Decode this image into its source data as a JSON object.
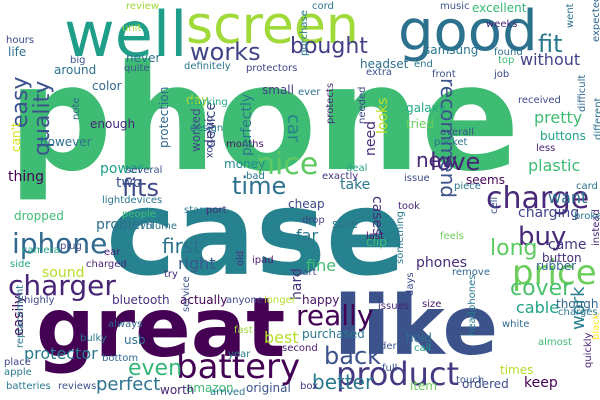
{
  "word_cloud": {
    "background": "#ffffff",
    "words": [
      {
        "text": "phone",
        "color": "#3fbc73"
      },
      {
        "text": "case",
        "color": "#26828e"
      },
      {
        "text": "great",
        "color": "#440154"
      },
      {
        "text": "like",
        "color": "#3b528b"
      },
      {
        "text": "well",
        "color": "#1f9e89"
      },
      {
        "text": "screen",
        "color": "#a0da39"
      },
      {
        "text": "good",
        "color": "#2c728e"
      },
      {
        "text": "battery",
        "color": "#440154"
      },
      {
        "text": "product",
        "color": "#443983"
      },
      {
        "text": "charger",
        "color": "#482475"
      },
      {
        "text": "iphone",
        "color": "#31688e"
      },
      {
        "text": "price",
        "color": "#6ccd5a"
      },
      {
        "text": "really",
        "color": "#440154"
      },
      {
        "text": "charge",
        "color": "#482878"
      },
      {
        "text": "fits",
        "color": "#3e4a89"
      },
      {
        "text": "time",
        "color": "#2c728e"
      },
      {
        "text": "works",
        "color": "#414487"
      },
      {
        "text": "bought",
        "color": "#433e85"
      },
      {
        "text": "love",
        "color": "#482475"
      },
      {
        "text": "back",
        "color": "#3b528b"
      },
      {
        "text": "nice",
        "color": "#5ec962"
      },
      {
        "text": "fit",
        "color": "#2a788e"
      },
      {
        "text": "buy",
        "color": "#482878"
      },
      {
        "text": "cover",
        "color": "#4ac16d"
      },
      {
        "text": "better",
        "color": "#2a788e"
      },
      {
        "text": "even",
        "color": "#35b779"
      },
      {
        "text": "recommend",
        "color": "#3b528b"
      },
      {
        "text": "easy",
        "color": "#3b528b"
      },
      {
        "text": "quality",
        "color": "#3b528b"
      },
      {
        "text": "first",
        "color": "#2c728e"
      },
      {
        "text": "perfect",
        "color": "#2c728e"
      },
      {
        "text": "long",
        "color": "#5ec962"
      },
      {
        "text": "new",
        "color": "#482878"
      },
      {
        "text": "work",
        "color": "#277f8e"
      },
      {
        "text": "pretty",
        "color": "#3fbc73"
      },
      {
        "text": "plastic",
        "color": "#3fbc73"
      },
      {
        "text": "without",
        "color": "#414487"
      },
      {
        "text": "charging",
        "color": "#404688"
      },
      {
        "text": "protector",
        "color": "#2a788e"
      },
      {
        "text": "cable",
        "color": "#20a386"
      },
      {
        "text": "keep",
        "color": "#440154"
      },
      {
        "text": "fine",
        "color": "#3fbc73"
      },
      {
        "text": "cases",
        "color": "#472d7b"
      },
      {
        "text": "best",
        "color": "#b5de2b"
      },
      {
        "text": "want",
        "color": "#2d708e"
      },
      {
        "text": "came",
        "color": "#453781"
      },
      {
        "text": "sound",
        "color": "#b5de2b"
      },
      {
        "text": "right",
        "color": "#365c8d"
      },
      {
        "text": "power",
        "color": "#1f9e89"
      },
      {
        "text": "two",
        "color": "#3b528b"
      },
      {
        "text": "color",
        "color": "#31688e"
      },
      {
        "text": "enough",
        "color": "#482878"
      },
      {
        "text": "phones",
        "color": "#472d7b"
      },
      {
        "text": "problem",
        "color": "#2d708e"
      },
      {
        "text": "easily",
        "color": "#440154"
      },
      {
        "text": "thing",
        "color": "#440154"
      },
      {
        "text": "take",
        "color": "#2a788e"
      },
      {
        "text": "far",
        "color": "#2a788e"
      },
      {
        "text": "hard",
        "color": "#46337e"
      },
      {
        "text": "looks",
        "color": "#bddf26"
      },
      {
        "text": "need",
        "color": "#472d7b"
      },
      {
        "text": "months",
        "color": "#471365"
      },
      {
        "text": "around",
        "color": "#2d708e"
      },
      {
        "text": "however",
        "color": "#2d708e"
      },
      {
        "text": "protection",
        "color": "#31688e"
      },
      {
        "text": "perfectly",
        "color": "#2a788e"
      },
      {
        "text": "device",
        "color": "#3e4a89"
      },
      {
        "text": "can't",
        "color": "#d8e219"
      },
      {
        "text": "dropped",
        "color": "#3fbc73"
      },
      {
        "text": "usb",
        "color": "#2d708e"
      },
      {
        "text": "bluetooth",
        "color": "#46337e"
      },
      {
        "text": "hold",
        "color": "#2d708e"
      },
      {
        "text": "purchased",
        "color": "#2a788e"
      },
      {
        "text": "happy",
        "color": "#471365"
      },
      {
        "text": "ordered",
        "color": "#3e4a89"
      },
      {
        "text": "item",
        "color": "#6ccd5a"
      },
      {
        "text": "headset",
        "color": "#2d708e"
      },
      {
        "text": "samsung",
        "color": "#2a788e"
      },
      {
        "text": "galaxy",
        "color": "#22a884"
      },
      {
        "text": "tried",
        "color": "#6ccd5a"
      },
      {
        "text": "car",
        "color": "#26828e"
      },
      {
        "text": "rubber",
        "color": "#31688e"
      },
      {
        "text": "button",
        "color": "#472d7b"
      },
      {
        "text": "day",
        "color": "#b5de2b"
      },
      {
        "text": "buttons",
        "color": "#20a386"
      },
      {
        "text": "life",
        "color": "#2c728e"
      },
      {
        "text": "never",
        "color": "#2c728e"
      },
      {
        "text": "small",
        "color": "#424086"
      },
      {
        "text": "money",
        "color": "#238a8d"
      },
      {
        "text": "worked",
        "color": "#404688"
      },
      {
        "text": "cheap",
        "color": "#3e4a89"
      },
      {
        "text": "amazon",
        "color": "#3fbc73"
      },
      {
        "text": "worth",
        "color": "#482475"
      },
      {
        "text": "original",
        "color": "#3b528b"
      },
      {
        "text": "actually",
        "color": "#440154"
      },
      {
        "text": "received",
        "color": "#3e4a89"
      },
      {
        "text": "times",
        "color": "#b5de2b"
      },
      {
        "text": "though",
        "color": "#31688e"
      },
      {
        "text": "seems",
        "color": "#440154"
      },
      {
        "text": "clip",
        "color": "#3fbc73"
      },
      {
        "text": "last",
        "color": "#48186a"
      },
      {
        "text": "sure",
        "color": "#2c728e"
      },
      {
        "text": "exactly",
        "color": "#46337e"
      },
      {
        "text": "anyone",
        "color": "#3e4a89"
      },
      {
        "text": "instead",
        "color": "#482475"
      },
      {
        "text": "overall",
        "color": "#3b528b"
      },
      {
        "text": "less",
        "color": "#482475"
      },
      {
        "text": "excellent",
        "color": "#35b779"
      },
      {
        "text": "music",
        "color": "#3b528b"
      },
      {
        "text": "cord",
        "color": "#2a788e"
      },
      {
        "text": "review",
        "color": "#9fda3a"
      },
      {
        "text": "unit",
        "color": "#a0da39"
      },
      {
        "text": "hours",
        "color": "#3e4a89"
      },
      {
        "text": "big",
        "color": "#3b528b"
      },
      {
        "text": "quite",
        "color": "#3b528b"
      },
      {
        "text": "definitely",
        "color": "#2a788e"
      },
      {
        "text": "protectors",
        "color": "#414487"
      },
      {
        "text": "extra",
        "color": "#3b528b"
      },
      {
        "text": "job",
        "color": "#3e4a89"
      },
      {
        "text": "top",
        "color": "#3fbc73"
      },
      {
        "text": "found",
        "color": "#2c728e"
      },
      {
        "text": "end",
        "color": "#2a788e"
      },
      {
        "text": "front",
        "color": "#3b528b"
      },
      {
        "text": "ear",
        "color": "#482475"
      },
      {
        "text": "plug",
        "color": "#3e4a89"
      },
      {
        "text": "camera",
        "color": "#20a386"
      },
      {
        "text": "side",
        "color": "#22a884"
      },
      {
        "text": "charged",
        "color": "#482878"
      },
      {
        "text": "volume",
        "color": "#2c728e"
      },
      {
        "text": "stars",
        "color": "#2a788e"
      },
      {
        "text": "port",
        "color": "#482878"
      },
      {
        "text": "drop",
        "color": "#433e85"
      },
      {
        "text": "part",
        "color": "#3b528b"
      },
      {
        "text": "ipad",
        "color": "#48186a"
      },
      {
        "text": "old",
        "color": "#46337e"
      },
      {
        "text": "fast",
        "color": "#a0da39"
      },
      {
        "text": "second",
        "color": "#48186a"
      },
      {
        "text": "always",
        "color": "#31688e"
      },
      {
        "text": "bottom",
        "color": "#31688e"
      },
      {
        "text": "apple",
        "color": "#2a788e"
      },
      {
        "text": "batteries",
        "color": "#2a788e"
      },
      {
        "text": "reviews",
        "color": "#3b528b"
      },
      {
        "text": "place",
        "color": "#414487"
      },
      {
        "text": "highly",
        "color": "#3e4a89"
      },
      {
        "text": "bulky",
        "color": "#2a788e"
      },
      {
        "text": "longer",
        "color": "#b5de2b"
      },
      {
        "text": "box",
        "color": "#46337e"
      },
      {
        "text": "full",
        "color": "#3b528b"
      },
      {
        "text": "call",
        "color": "#20a386"
      },
      {
        "text": "touch",
        "color": "#3b528b"
      },
      {
        "text": "almost",
        "color": "#3fbc73"
      },
      {
        "text": "charges",
        "color": "#2a788e"
      },
      {
        "text": "quickly",
        "color": "#482475"
      },
      {
        "text": "black",
        "color": "#fde725"
      },
      {
        "text": "white",
        "color": "#31688e"
      },
      {
        "text": "headphones",
        "color": "#2a788e"
      },
      {
        "text": "days",
        "color": "#3e4a89"
      },
      {
        "text": "size",
        "color": "#48186a"
      },
      {
        "text": "issues",
        "color": "#482878"
      },
      {
        "text": "feels",
        "color": "#6ccd5a"
      },
      {
        "text": "remove",
        "color": "#31688e"
      },
      {
        "text": "cell",
        "color": "#3b528b"
      },
      {
        "text": "card",
        "color": "#2c728e"
      },
      {
        "text": "broke",
        "color": "#2a788e"
      },
      {
        "text": "piece",
        "color": "#2a788e"
      },
      {
        "text": "took",
        "color": "#482878"
      },
      {
        "text": "deal",
        "color": "#20a386"
      },
      {
        "text": "issue",
        "color": "#3e4a89"
      },
      {
        "text": "bad",
        "color": "#2c728e"
      },
      {
        "text": "design",
        "color": "#2a788e"
      },
      {
        "text": "otterbox",
        "color": "#414487"
      },
      {
        "text": "note",
        "color": "#31688e"
      },
      {
        "text": "several",
        "color": "#3b528b"
      },
      {
        "text": "people",
        "color": "#3fbc73"
      },
      {
        "text": "lightdevices",
        "color": "#2a788e"
      },
      {
        "text": "protects",
        "color": "#482878"
      },
      {
        "text": "needed",
        "color": "#3e4a89"
      },
      {
        "text": "pocket",
        "color": "#2c728e"
      },
      {
        "text": "difficult",
        "color": "#31688e"
      },
      {
        "text": "weeks",
        "color": "#482878"
      },
      {
        "text": "went",
        "color": "#2c728e"
      },
      {
        "text": "expected",
        "color": "#31688e"
      },
      {
        "text": "ever",
        "color": "#2c728e"
      },
      {
        "text": "different",
        "color": "#2c728e"
      },
      {
        "text": "working",
        "color": "#22a884"
      },
      {
        "text": "try",
        "color": "#482878"
      },
      {
        "text": "service",
        "color": "#3b528b"
      },
      {
        "text": "year",
        "color": "#2a788e"
      },
      {
        "text": "arrived",
        "color": "#2a788e"
      },
      {
        "text": "replacement",
        "color": "#2a788e"
      },
      {
        "text": "something",
        "color": "#2a788e"
      },
      {
        "text": "purchase",
        "color": "#2a788e"
      },
      {
        "text": "order",
        "color": "#3b528b"
      }
    ]
  }
}
